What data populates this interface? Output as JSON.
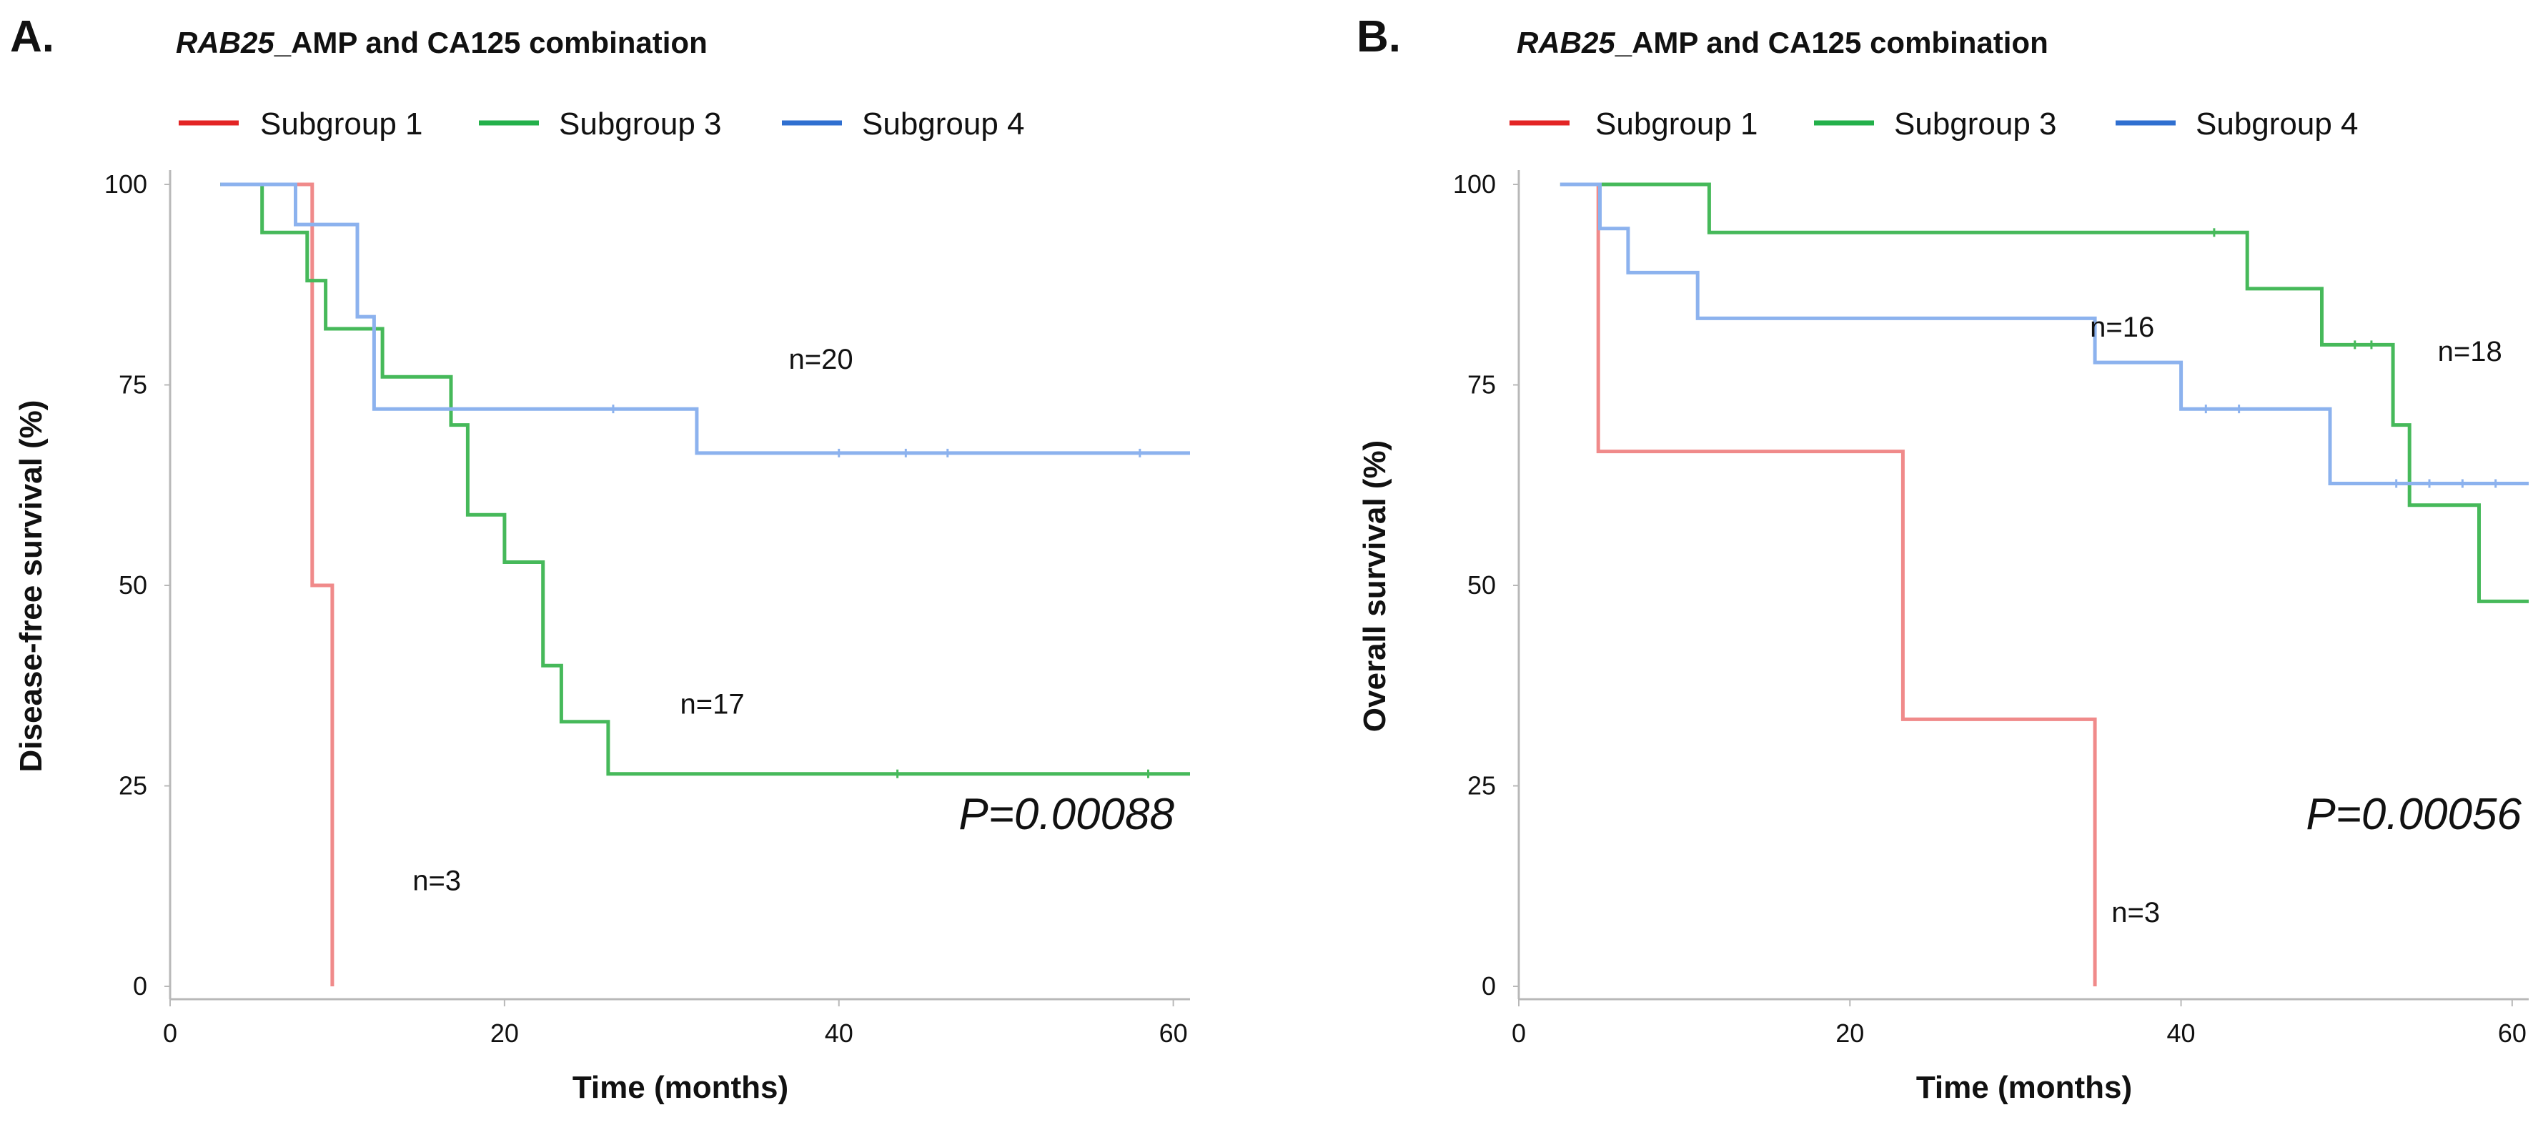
{
  "colors": {
    "subgroup1": "#f08a8a",
    "subgroup3": "#46b95a",
    "subgroup4": "#8cb2ee",
    "legend_subgroup1": "#e32424",
    "legend_subgroup3": "#23b04a",
    "legend_subgroup4": "#2f6fd0",
    "axis": "#b8b8b8"
  },
  "chart_data": [
    {
      "type": "line",
      "panel_letter": "A.",
      "title_italic": "RAB25",
      "title_rest": "_AMP  and CA125  combination",
      "legend": [
        "Subgroup  1",
        "Subgroup  3",
        "Subgroup  4"
      ],
      "xlabel": "Time (months)",
      "ylabel": "Disease-free  survival  (%)",
      "xlim": [
        0,
        61
      ],
      "ylim": [
        0,
        100
      ],
      "xticks": [
        0,
        20,
        40,
        60
      ],
      "yticks": [
        0,
        25,
        50,
        75,
        100
      ],
      "pvalue": "P=0.00088",
      "series": [
        {
          "name": "Subgroup  1",
          "count_label": "n=3",
          "label_at": [
            14.5,
            12
          ],
          "steps": [
            [
              3,
              100
            ],
            [
              8.5,
              100
            ],
            [
              8.5,
              50
            ],
            [
              9.7,
              50
            ],
            [
              9.7,
              0
            ]
          ],
          "censors": []
        },
        {
          "name": "Subgroup  3",
          "count_label": "n=17",
          "label_at": [
            30.5,
            34
          ],
          "steps": [
            [
              3,
              100
            ],
            [
              5.5,
              100
            ],
            [
              5.5,
              94
            ],
            [
              8.2,
              94
            ],
            [
              8.2,
              88
            ],
            [
              9.3,
              88
            ],
            [
              9.3,
              82
            ],
            [
              12.7,
              82
            ],
            [
              12.7,
              76
            ],
            [
              16.8,
              76
            ],
            [
              16.8,
              70
            ],
            [
              17.8,
              70
            ],
            [
              17.8,
              58.8
            ],
            [
              20,
              58.8
            ],
            [
              20,
              52.9
            ],
            [
              22.3,
              52.9
            ],
            [
              22.3,
              40
            ],
            [
              23.4,
              40
            ],
            [
              23.4,
              33
            ],
            [
              26.2,
              33
            ],
            [
              26.2,
              26.5
            ],
            [
              61,
              26.5
            ]
          ],
          "censors": [
            [
              43.5,
              26.5
            ],
            [
              58.5,
              26.5
            ]
          ]
        },
        {
          "name": "Subgroup  4",
          "count_label": "n=20",
          "label_at": [
            37,
            77
          ],
          "steps": [
            [
              3,
              100
            ],
            [
              7.5,
              100
            ],
            [
              7.5,
              95
            ],
            [
              11.2,
              95
            ],
            [
              11.2,
              83.5
            ],
            [
              12.2,
              83.5
            ],
            [
              12.2,
              72
            ],
            [
              31.5,
              72
            ],
            [
              31.5,
              66.5
            ],
            [
              61,
              66.5
            ]
          ],
          "censors": [
            [
              26.5,
              72
            ],
            [
              40,
              66.5
            ],
            [
              44,
              66.5
            ],
            [
              46.5,
              66.5
            ],
            [
              58,
              66.5
            ]
          ]
        }
      ]
    },
    {
      "type": "line",
      "panel_letter": "B.",
      "title_italic": "RAB25",
      "title_rest": "_AMP  and CA125  combination",
      "legend": [
        "Subgroup  1",
        "Subgroup  3",
        "Subgroup  4"
      ],
      "xlabel": "Time (months)",
      "ylabel": "Overall  survival  (%)",
      "xlim": [
        0,
        61
      ],
      "ylim": [
        0,
        100
      ],
      "xticks": [
        0,
        20,
        40,
        60
      ],
      "yticks": [
        0,
        25,
        50,
        75,
        100
      ],
      "pvalue": "P=0.00056",
      "series": [
        {
          "name": "Subgroup  1",
          "count_label": "n=3",
          "label_at": [
            35.8,
            8
          ],
          "steps": [
            [
              2.5,
              100
            ],
            [
              4.8,
              100
            ],
            [
              4.8,
              66.7
            ],
            [
              23.2,
              66.7
            ],
            [
              23.2,
              33.3
            ],
            [
              34.8,
              33.3
            ],
            [
              34.8,
              0
            ]
          ],
          "censors": []
        },
        {
          "name": "Subgroup  3",
          "count_label": "n=18",
          "label_at": [
            55.5,
            78
          ],
          "steps": [
            [
              2.5,
              100
            ],
            [
              11.5,
              100
            ],
            [
              11.5,
              94
            ],
            [
              44,
              94
            ],
            [
              44,
              87
            ],
            [
              48.5,
              87
            ],
            [
              48.5,
              80
            ],
            [
              52.8,
              80
            ],
            [
              52.8,
              70
            ],
            [
              53.8,
              70
            ],
            [
              53.8,
              60
            ],
            [
              58,
              60
            ],
            [
              58,
              48
            ],
            [
              61,
              48
            ]
          ],
          "censors": [
            [
              42,
              94
            ],
            [
              50.5,
              80
            ],
            [
              51.5,
              80
            ]
          ]
        },
        {
          "name": "Subgroup  4",
          "count_label": "n=16",
          "label_at": [
            34.5,
            81
          ],
          "steps": [
            [
              2.5,
              100
            ],
            [
              4.9,
              100
            ],
            [
              4.9,
              94.5
            ],
            [
              6.6,
              94.5
            ],
            [
              6.6,
              89
            ],
            [
              10.8,
              89
            ],
            [
              10.8,
              83.3
            ],
            [
              34.8,
              83.3
            ],
            [
              34.8,
              77.8
            ],
            [
              40,
              77.8
            ],
            [
              40,
              72
            ],
            [
              49,
              72
            ],
            [
              49,
              62.7
            ],
            [
              61,
              62.7
            ]
          ],
          "censors": [
            [
              41.5,
              72
            ],
            [
              43.5,
              72
            ],
            [
              53,
              62.7
            ],
            [
              55,
              62.7
            ],
            [
              57,
              62.7
            ],
            [
              59,
              62.7
            ]
          ]
        }
      ]
    }
  ]
}
